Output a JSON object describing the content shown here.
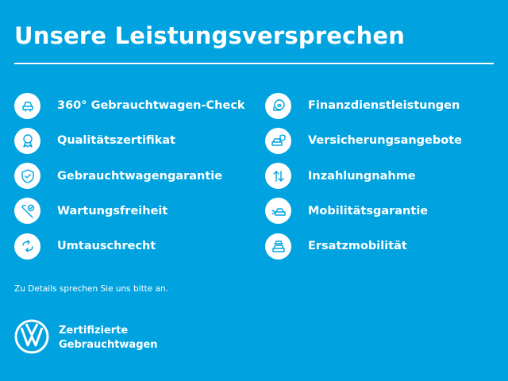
{
  "header": {
    "title": "Unsere Leistungsversprechen"
  },
  "colors": {
    "background": "#00a3e0",
    "icon": "#00a3e0",
    "text": "#ffffff"
  },
  "left_items": [
    {
      "label": "360° Gebrauchtwagen-Check",
      "icon": "car-check-icon"
    },
    {
      "label": "Qualitätszertifikat",
      "icon": "award-ribbon-icon"
    },
    {
      "label": "Gebrauchtwagengarantie",
      "icon": "shield-check-icon"
    },
    {
      "label": "Wartungsfreiheit",
      "icon": "wrench-check-icon"
    },
    {
      "label": "Umtauschrecht",
      "icon": "exchange-arrows-icon"
    }
  ],
  "right_items": [
    {
      "label": "Finanzdienstleistungen",
      "icon": "coins-icon"
    },
    {
      "label": "Versicherungsangebote",
      "icon": "car-insurance-icon"
    },
    {
      "label": "Inzahlungnahme",
      "icon": "up-down-arrows-icon"
    },
    {
      "label": "Mobilitätsgarantie",
      "icon": "towing-car-icon"
    },
    {
      "label": "Ersatzmobilität",
      "icon": "replacement-car-icon"
    }
  ],
  "note": "Zu Details sprechen Sie uns bitte an.",
  "brand": {
    "logo": "VW",
    "line1": "Zertifizierte",
    "line2": "Gebrauchtwagen"
  }
}
